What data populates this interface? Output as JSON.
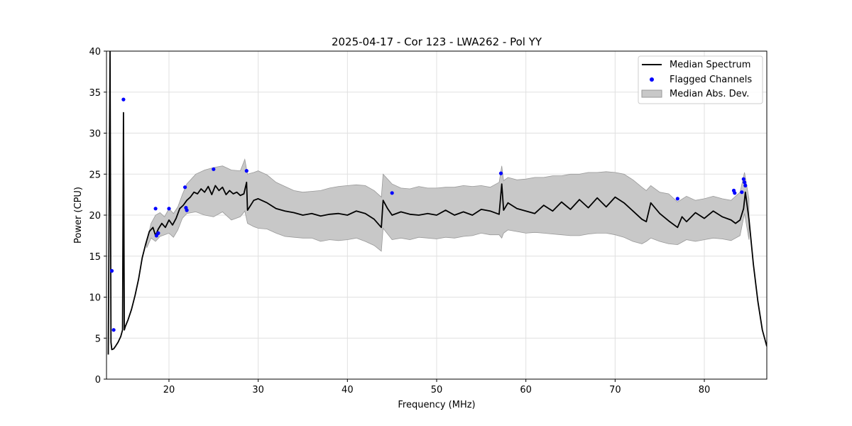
{
  "chart_data": {
    "type": "line",
    "title": "2025-04-17 - Cor 123 - LWA262 - Pol YY",
    "xlabel": "Frequency (MHz)",
    "ylabel": "Power (CPU)",
    "xlim": [
      13.0,
      87.0
    ],
    "ylim": [
      0,
      40
    ],
    "xticks": [
      20,
      30,
      40,
      50,
      60,
      70,
      80
    ],
    "yticks": [
      0,
      5,
      10,
      15,
      20,
      25,
      30,
      35,
      40
    ],
    "grid": true,
    "legend_position": "top-right",
    "legend": {
      "median_label": "Median Spectrum",
      "flagged_label": "Flagged Channels",
      "mad_label": "Median Abs. Dev."
    },
    "colors": {
      "median": "#000000",
      "flagged": "#0000ff",
      "mad_fill": "#c8c8c8",
      "mad_edge": "#999999"
    },
    "series": [
      {
        "name": "Median Spectrum",
        "kind": "line",
        "x": [
          13.2,
          13.4,
          13.5,
          13.6,
          13.8,
          14.0,
          14.3,
          14.6,
          14.8,
          14.9,
          15.0,
          15.1,
          15.4,
          15.8,
          16.2,
          16.6,
          17.0,
          17.4,
          17.8,
          18.2,
          18.5,
          18.8,
          19.2,
          19.6,
          20.0,
          20.4,
          20.8,
          21.2,
          21.6,
          22.0,
          22.4,
          22.8,
          23.2,
          23.6,
          24.0,
          24.4,
          24.8,
          25.2,
          25.6,
          26.0,
          26.4,
          26.8,
          27.2,
          27.6,
          28.0,
          28.4,
          28.7,
          28.8,
          29.5,
          30.0,
          31.0,
          32.0,
          33.0,
          34.0,
          35.0,
          36.0,
          37.0,
          38.0,
          39.0,
          40.0,
          41.0,
          42.0,
          43.0,
          43.8,
          44.0,
          44.5,
          45.0,
          46.0,
          47.0,
          48.0,
          49.0,
          50.0,
          51.0,
          52.0,
          53.0,
          54.0,
          55.0,
          56.0,
          57.0,
          57.3,
          57.5,
          58.0,
          59.0,
          60.0,
          61.0,
          62.0,
          63.0,
          64.0,
          65.0,
          66.0,
          67.0,
          68.0,
          69.0,
          70.0,
          71.0,
          72.0,
          73.0,
          73.5,
          74.0,
          75.0,
          76.0,
          77.0,
          77.5,
          78.0,
          79.0,
          80.0,
          81.0,
          82.0,
          83.0,
          83.5,
          84.0,
          84.4,
          84.6,
          85.0,
          85.5,
          86.0,
          86.5,
          87.0
        ],
        "y": [
          3.0,
          40.0,
          4.5,
          3.6,
          3.7,
          4.0,
          4.5,
          5.2,
          6.0,
          32.5,
          6.0,
          6.4,
          7.2,
          8.5,
          10.2,
          12.2,
          14.8,
          16.5,
          18.0,
          18.5,
          17.5,
          18.3,
          19.0,
          18.5,
          19.4,
          18.8,
          19.6,
          20.8,
          21.2,
          21.8,
          22.2,
          22.8,
          22.6,
          23.2,
          22.8,
          23.5,
          22.5,
          23.6,
          23.0,
          23.4,
          22.5,
          23.0,
          22.6,
          22.8,
          22.4,
          22.6,
          24.0,
          20.6,
          21.8,
          22.0,
          21.5,
          20.8,
          20.5,
          20.3,
          20.0,
          20.2,
          19.9,
          20.1,
          20.2,
          20.0,
          20.5,
          20.2,
          19.5,
          18.5,
          21.8,
          20.8,
          20.0,
          20.4,
          20.1,
          20.0,
          20.2,
          20.0,
          20.6,
          20.0,
          20.4,
          20.0,
          20.7,
          20.5,
          20.1,
          23.8,
          20.6,
          21.5,
          20.8,
          20.5,
          20.2,
          21.2,
          20.5,
          21.6,
          20.7,
          21.9,
          20.9,
          22.1,
          21.0,
          22.2,
          21.5,
          20.5,
          19.5,
          19.2,
          21.5,
          20.2,
          19.3,
          18.5,
          19.8,
          19.2,
          20.3,
          19.6,
          20.5,
          19.8,
          19.4,
          19.0,
          19.4,
          20.8,
          22.8,
          19.5,
          14.0,
          9.5,
          6.0,
          4.0
        ]
      },
      {
        "name": "Median Abs. Dev.",
        "kind": "band",
        "x": [
          17.5,
          18.0,
          18.5,
          19.0,
          19.5,
          20.0,
          20.5,
          21.0,
          21.5,
          22.0,
          23.0,
          24.0,
          25.0,
          26.0,
          27.0,
          28.0,
          28.5,
          28.8,
          29.5,
          30.0,
          31.0,
          32.0,
          33.0,
          34.0,
          35.0,
          36.0,
          37.0,
          38.0,
          39.0,
          40.0,
          41.0,
          42.0,
          43.0,
          43.8,
          44.0,
          45.0,
          46.0,
          47.0,
          48.0,
          49.0,
          50.0,
          51.0,
          52.0,
          53.0,
          54.0,
          55.0,
          56.0,
          57.0,
          57.3,
          57.5,
          58.0,
          59.0,
          60.0,
          61.0,
          62.0,
          63.0,
          64.0,
          65.0,
          66.0,
          67.0,
          68.0,
          69.0,
          70.0,
          71.0,
          72.0,
          73.0,
          73.5,
          74.0,
          75.0,
          76.0,
          77.0,
          78.0,
          79.0,
          80.0,
          81.0,
          82.0,
          83.0,
          84.0,
          84.5,
          85.0
        ],
        "upper": [
          16.8,
          19.0,
          20.0,
          20.3,
          19.8,
          20.8,
          20.2,
          21.0,
          22.5,
          23.8,
          25.0,
          25.5,
          25.8,
          26.0,
          25.5,
          25.4,
          26.8,
          25.0,
          25.2,
          25.4,
          24.9,
          24.0,
          23.5,
          23.0,
          22.8,
          22.9,
          23.0,
          23.3,
          23.5,
          23.6,
          23.7,
          23.6,
          23.0,
          22.2,
          25.0,
          23.8,
          23.3,
          23.2,
          23.5,
          23.3,
          23.3,
          23.4,
          23.4,
          23.6,
          23.5,
          23.6,
          23.4,
          24.0,
          26.0,
          24.2,
          24.6,
          24.3,
          24.4,
          24.6,
          24.6,
          24.8,
          24.8,
          25.0,
          25.0,
          25.2,
          25.2,
          25.3,
          25.2,
          25.0,
          24.3,
          23.4,
          23.0,
          23.6,
          22.8,
          22.6,
          21.6,
          22.3,
          21.8,
          22.0,
          22.3,
          22.0,
          21.8,
          22.8,
          25.2,
          22.0
        ],
        "lower": [
          16.0,
          17.2,
          16.8,
          17.4,
          17.6,
          17.8,
          17.3,
          18.2,
          19.6,
          20.2,
          20.4,
          20.0,
          19.8,
          20.4,
          19.4,
          19.8,
          20.5,
          19.0,
          18.6,
          18.4,
          18.3,
          17.8,
          17.4,
          17.3,
          17.2,
          17.2,
          16.8,
          17.0,
          16.9,
          17.0,
          17.2,
          16.8,
          16.3,
          15.6,
          18.4,
          17.0,
          17.2,
          17.0,
          17.3,
          17.2,
          17.1,
          17.3,
          17.2,
          17.4,
          17.5,
          17.8,
          17.6,
          17.6,
          17.2,
          17.8,
          18.2,
          18.0,
          17.8,
          17.9,
          17.8,
          17.7,
          17.6,
          17.5,
          17.5,
          17.7,
          17.8,
          17.8,
          17.6,
          17.3,
          16.8,
          16.5,
          16.8,
          17.2,
          16.8,
          16.5,
          16.4,
          17.0,
          16.8,
          17.0,
          17.2,
          17.1,
          16.9,
          17.5,
          20.2,
          17.0
        ]
      },
      {
        "name": "Flagged Channels",
        "kind": "scatter",
        "x": [
          13.6,
          13.8,
          14.9,
          18.5,
          18.6,
          18.8,
          20.0,
          21.8,
          21.9,
          22.0,
          25.0,
          28.7,
          45.0,
          57.2,
          77.0,
          83.3,
          83.4,
          84.2,
          84.4,
          84.5,
          84.6
        ],
        "y": [
          13.2,
          6.0,
          34.1,
          20.8,
          17.5,
          17.8,
          20.8,
          23.4,
          20.9,
          20.6,
          25.6,
          25.4,
          22.7,
          25.1,
          22.0,
          23.0,
          22.7,
          22.8,
          24.4,
          24.0,
          23.6
        ]
      }
    ]
  }
}
